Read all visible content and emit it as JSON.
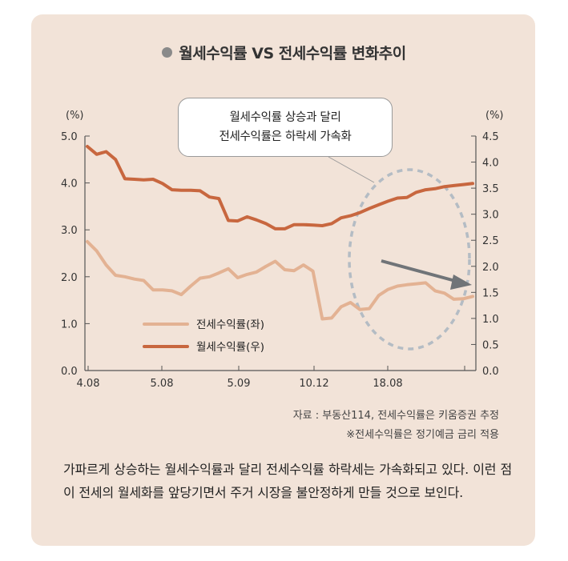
{
  "chart_data": {
    "type": "line",
    "title": "월세수익률 VS 전세수익률 변화추이",
    "y_left_label": "(%)",
    "y_right_label": "(%)",
    "y_left_ticks": [
      "5.0",
      "4.0",
      "3.0",
      "2.0",
      "1.0",
      "0.0"
    ],
    "y_right_ticks": [
      "4.5",
      "4.0",
      "3.5",
      "3.0",
      "2.5",
      "2.0",
      "1.5",
      "1.0",
      "0.5",
      "0.0"
    ],
    "ylim_left": [
      0,
      5
    ],
    "ylim_right": [
      0,
      4.5
    ],
    "x_ticks": [
      "4.08",
      "5.08",
      "5.09",
      "10.12",
      "18.08"
    ],
    "legend_position": "bottom-left",
    "callout": [
      "월세수익률 상승과 달리",
      "전세수익률은 하락세 가속화"
    ],
    "series": [
      {
        "name": "전세수익률(좌)",
        "axis": "left",
        "color": "#e3b293",
        "values": [
          2.75,
          2.55,
          2.25,
          2.03,
          2.0,
          1.95,
          1.92,
          1.72,
          1.72,
          1.7,
          1.62,
          1.8,
          1.97,
          2.0,
          2.08,
          2.17,
          1.98,
          2.05,
          2.1,
          2.22,
          2.33,
          2.15,
          2.13,
          2.25,
          2.12,
          1.1,
          1.12,
          1.36,
          1.45,
          1.3,
          1.32,
          1.6,
          1.73,
          1.8,
          1.83,
          1.85,
          1.87,
          1.7,
          1.65,
          1.52,
          1.53,
          1.58
        ]
      },
      {
        "name": "월세수익률(우)",
        "axis": "right",
        "color": "#c8673f",
        "values": [
          4.3,
          4.15,
          4.2,
          4.05,
          3.68,
          3.67,
          3.66,
          3.67,
          3.59,
          3.47,
          3.46,
          3.46,
          3.45,
          3.33,
          3.3,
          2.88,
          2.87,
          2.95,
          2.89,
          2.82,
          2.72,
          2.72,
          2.8,
          2.8,
          2.79,
          2.78,
          2.82,
          2.93,
          2.97,
          3.03,
          3.11,
          3.18,
          3.25,
          3.31,
          3.32,
          3.42,
          3.47,
          3.49,
          3.53,
          3.55,
          3.57,
          3.59
        ]
      }
    ]
  },
  "source_note": {
    "line1": "자료 : 부동산114, 전세수익률은 키움증권 추정",
    "line2": "※전세수익률은 정기예금 금리 적용"
  },
  "body_text": "가파르게 상승하는 월세수익률과 달리 전세수익률 하락세는 가속화되고 있다. 이런 점이 전세의 월세화를 앞당기면서 주거 시장을 불안정하게 만들 것으로 보인다."
}
